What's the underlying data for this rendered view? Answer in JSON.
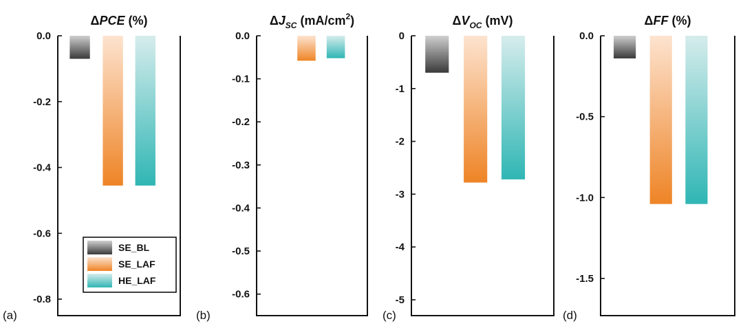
{
  "colors": {
    "se_bl": [
      "#cfcfcf",
      "#3a3a3a"
    ],
    "se_laf": [
      "#fde3cf",
      "#ee8426"
    ],
    "he_laf": [
      "#d6ecec",
      "#2fb6b4"
    ]
  },
  "legend": {
    "items": [
      {
        "label": "SE_BL",
        "key": "se_bl"
      },
      {
        "label": "SE_LAF",
        "key": "se_laf"
      },
      {
        "label": "HE_LAF",
        "key": "he_laf"
      }
    ]
  },
  "chart_data": [
    {
      "type": "bar",
      "panel_label": "(a)",
      "title": {
        "prefix": "Δ",
        "main": "PCE",
        "sub": "",
        "sup": "",
        "unit": " (%)",
        "italic": true
      },
      "categories": [
        "SE_BL",
        "SE_LAF",
        "HE_LAF"
      ],
      "values": [
        -0.07,
        -0.455,
        -0.455
      ],
      "ylim": [
        -0.85,
        0.0
      ],
      "yticks": [
        0.0,
        -0.2,
        -0.4,
        -0.6,
        -0.8
      ],
      "ytick_labels": [
        "0.0",
        "-0.2",
        "-0.4",
        "-0.6",
        "-0.8"
      ]
    },
    {
      "type": "bar",
      "panel_label": "(b)",
      "title": {
        "prefix": "Δ",
        "main": "J",
        "sub": "SC",
        "sup": "2",
        "unit": " (mA/cm",
        "italic": true
      },
      "categories": [
        "SE_BL",
        "SE_LAF",
        "HE_LAF"
      ],
      "values": [
        0.0,
        -0.058,
        -0.052
      ],
      "ylim": [
        -0.65,
        0.0
      ],
      "yticks": [
        0.0,
        -0.1,
        -0.2,
        -0.3,
        -0.4,
        -0.5,
        -0.6
      ],
      "ytick_labels": [
        "0.0",
        "-0.1",
        "-0.2",
        "-0.3",
        "-0.4",
        "-0.5",
        "-0.6"
      ]
    },
    {
      "type": "bar",
      "panel_label": "(c)",
      "title": {
        "prefix": "Δ",
        "main": "V",
        "sub": "OC",
        "sup": "",
        "unit": " (mV)",
        "italic": true
      },
      "categories": [
        "SE_BL",
        "SE_LAF",
        "HE_LAF"
      ],
      "values": [
        -0.7,
        -2.78,
        -2.72
      ],
      "ylim": [
        -5.3,
        0.0
      ],
      "yticks": [
        0,
        -1,
        -2,
        -3,
        -4,
        -5
      ],
      "ytick_labels": [
        "0",
        "-1",
        "-2",
        "-3",
        "-4",
        "-5"
      ]
    },
    {
      "type": "bar",
      "panel_label": "(d)",
      "title": {
        "prefix": "Δ",
        "main": "FF",
        "sub": "",
        "sup": "",
        "unit": " (%)",
        "italic": true
      },
      "categories": [
        "SE_BL",
        "SE_LAF",
        "HE_LAF"
      ],
      "values": [
        -0.14,
        -1.04,
        -1.04
      ],
      "ylim": [
        -1.73,
        0.0
      ],
      "yticks": [
        0.0,
        -0.5,
        -1.0,
        -1.5
      ],
      "ytick_labels": [
        "0.0",
        "-0.5",
        "-1.0",
        "-1.5"
      ]
    }
  ]
}
